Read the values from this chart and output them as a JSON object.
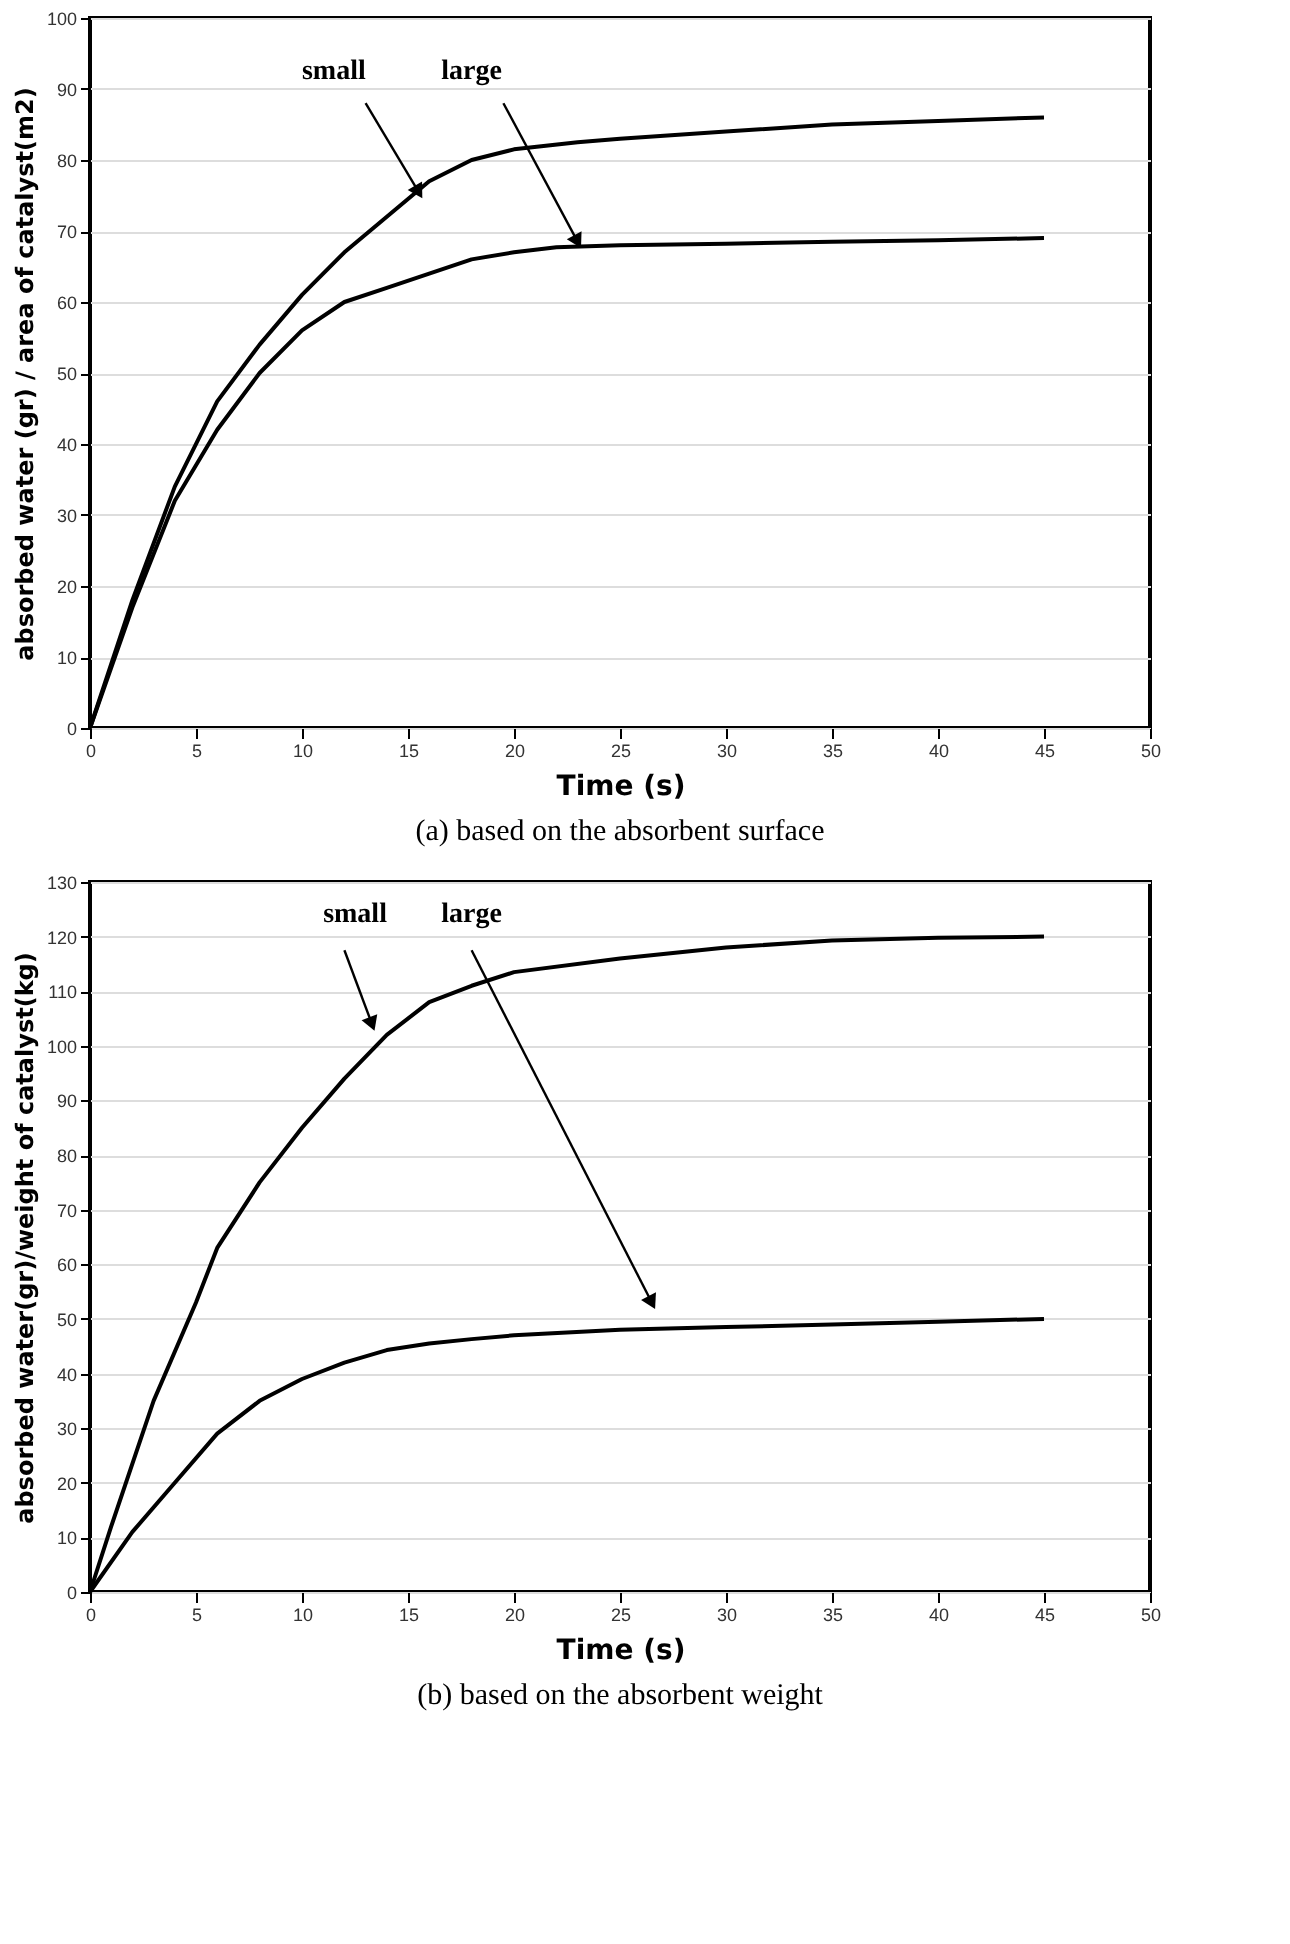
{
  "chart_data": [
    {
      "type": "line",
      "xlabel": "Time (s)",
      "ylabel": "absorbed water (gr) / area of catalyst(m2)",
      "annotations": [
        "(a) based on the absorbent surface"
      ],
      "xlim": [
        0,
        50
      ],
      "xticks": [
        0,
        5,
        10,
        15,
        20,
        25,
        30,
        35,
        40,
        45,
        50
      ],
      "ylim": [
        0,
        100
      ],
      "yticks": [
        0,
        10,
        20,
        30,
        40,
        50,
        60,
        70,
        80,
        90,
        100
      ],
      "grid": "y",
      "legend": false,
      "marker": "none",
      "line_style": "solid",
      "series": [
        {
          "name": "small",
          "color": "#000000",
          "x": [
            0,
            2,
            4,
            6,
            8,
            10,
            12,
            14,
            16,
            18,
            20,
            23,
            25,
            30,
            35,
            40,
            45
          ],
          "values": [
            0,
            18,
            34,
            46,
            54,
            61,
            67,
            72,
            77,
            80,
            81.5,
            82.5,
            83,
            84,
            85,
            85.5,
            86
          ]
        },
        {
          "name": "large",
          "color": "#000000",
          "x": [
            0,
            2,
            4,
            6,
            8,
            10,
            12,
            14,
            16,
            18,
            20,
            22,
            25,
            30,
            35,
            40,
            45
          ],
          "values": [
            0,
            17,
            32,
            42,
            50,
            56,
            60,
            62,
            64,
            66,
            67,
            67.7,
            68,
            68.2,
            68.5,
            68.7,
            69
          ]
        }
      ]
    },
    {
      "type": "line",
      "xlabel": "Time (s)",
      "ylabel": "absorbed water(gr)/weight of catalyst(kg)",
      "annotations": [
        "(b) based on the absorbent weight"
      ],
      "xlim": [
        0,
        50
      ],
      "xticks": [
        0,
        5,
        10,
        15,
        20,
        25,
        30,
        35,
        40,
        45,
        50
      ],
      "ylim": [
        0,
        130
      ],
      "yticks": [
        0,
        10,
        20,
        30,
        40,
        50,
        60,
        70,
        80,
        90,
        100,
        110,
        120,
        130
      ],
      "grid": "y",
      "legend": false,
      "marker": "none",
      "line_style": "solid",
      "series": [
        {
          "name": "small",
          "color": "#000000",
          "x": [
            0,
            1,
            3,
            5,
            6,
            8,
            10,
            12,
            14,
            16,
            18,
            20,
            25,
            30,
            35,
            40,
            45
          ],
          "values": [
            0,
            12,
            35,
            53,
            63,
            75,
            85,
            94,
            102,
            108,
            111,
            113.5,
            116,
            118,
            119.3,
            119.8,
            120
          ]
        },
        {
          "name": "large",
          "color": "#000000",
          "x": [
            0,
            2,
            4,
            6,
            8,
            10,
            12,
            14,
            16,
            18,
            20,
            25,
            30,
            35,
            40,
            45
          ],
          "values": [
            0,
            11,
            20,
            29,
            35,
            39,
            42,
            44.3,
            45.5,
            46.3,
            47,
            48,
            48.5,
            49,
            49.5,
            50
          ]
        }
      ]
    }
  ]
}
